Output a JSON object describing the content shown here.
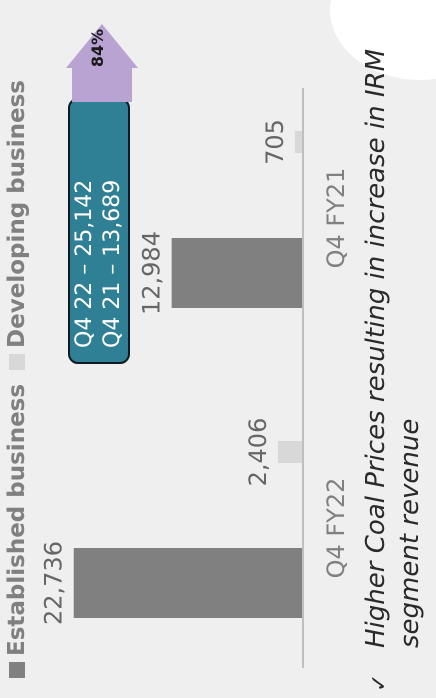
{
  "legend": {
    "established": "Established business",
    "developing": "Developing business"
  },
  "colors": {
    "established": "#808080",
    "developing": "#d8d8d8",
    "callout_bg": "#2f7f95",
    "arrow": "#b9a3d3"
  },
  "callout": {
    "line1": "Q4 22 – 25,142",
    "line2": "Q4 21 – 13,689"
  },
  "growth": "84%",
  "note": {
    "check": "✓",
    "line1": "Higher Coal Prices resulting in increase in IRM",
    "line2": "segment revenue"
  },
  "chart_data": {
    "type": "bar",
    "categories": [
      "Q4 FY22",
      "Q4 FY21"
    ],
    "series": [
      {
        "name": "Established business",
        "values": [
          22736,
          12984
        ],
        "labels": [
          "22,736",
          "12,984"
        ]
      },
      {
        "name": "Developing business",
        "values": [
          2406,
          705
        ],
        "labels": [
          "2,406",
          "705"
        ]
      }
    ],
    "ylim": [
      0,
      25000
    ]
  }
}
